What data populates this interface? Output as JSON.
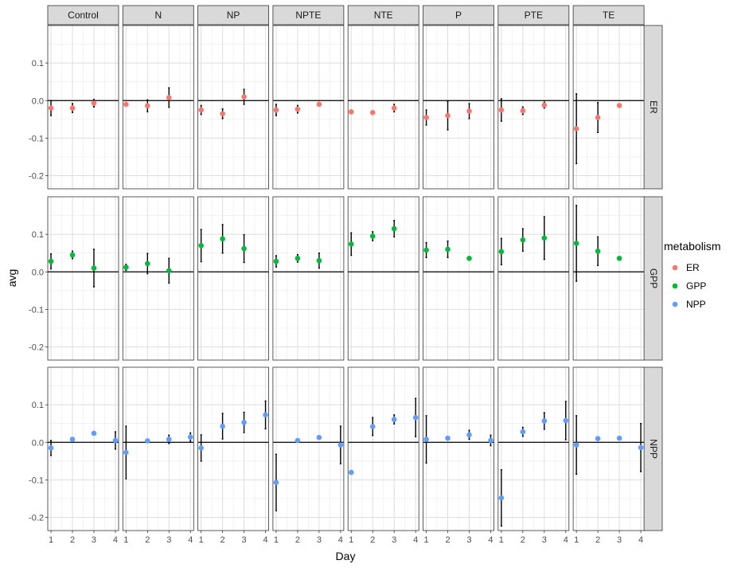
{
  "chart_data": {
    "type": "scatter",
    "facet_columns": [
      "Control",
      "N",
      "NP",
      "NPTE",
      "NTE",
      "P",
      "PTE",
      "TE"
    ],
    "facet_rows": [
      "ER",
      "GPP",
      "NPP"
    ],
    "xlabel": "Day",
    "ylabel": "avg",
    "x_ticks": [
      1,
      2,
      3,
      4
    ],
    "y_ticks": [
      -0.2,
      -0.1,
      0.0,
      0.1
    ],
    "y_tick_labels": [
      "-0.2",
      "-0.1",
      "0.0",
      "0.1"
    ],
    "xlim": [
      0.85,
      4.15
    ],
    "ylim": [
      -0.235,
      0.2
    ],
    "reference_line_y": 0,
    "grid": true,
    "legend": {
      "title": "metabolism",
      "position": "right",
      "entries": [
        {
          "name": "ER",
          "color": "#F8766D"
        },
        {
          "name": "GPP",
          "color": "#00BA38"
        },
        {
          "name": "NPP",
          "color": "#619CFF"
        }
      ]
    },
    "panels": [
      {
        "row": "ER",
        "col": "Control",
        "points": [
          {
            "x": 1,
            "y": -0.02,
            "lo": -0.04,
            "hi": 0.0
          },
          {
            "x": 2,
            "y": -0.02,
            "lo": -0.032,
            "hi": -0.008
          },
          {
            "x": 3,
            "y": -0.007,
            "lo": -0.017,
            "hi": 0.003
          }
        ]
      },
      {
        "row": "ER",
        "col": "N",
        "points": [
          {
            "x": 1,
            "y": -0.01,
            "lo": -0.013,
            "hi": -0.007
          },
          {
            "x": 2,
            "y": -0.014,
            "lo": -0.03,
            "hi": 0.002
          },
          {
            "x": 3,
            "y": 0.008,
            "lo": -0.018,
            "hi": 0.034
          }
        ]
      },
      {
        "row": "ER",
        "col": "NP",
        "points": [
          {
            "x": 1,
            "y": -0.025,
            "lo": -0.037,
            "hi": -0.013
          },
          {
            "x": 2,
            "y": -0.035,
            "lo": -0.048,
            "hi": -0.022
          },
          {
            "x": 3,
            "y": 0.01,
            "lo": -0.01,
            "hi": 0.03
          }
        ]
      },
      {
        "row": "ER",
        "col": "NPTE",
        "points": [
          {
            "x": 1,
            "y": -0.025,
            "lo": -0.04,
            "hi": -0.01
          },
          {
            "x": 2,
            "y": -0.023,
            "lo": -0.033,
            "hi": -0.013
          },
          {
            "x": 3,
            "y": -0.01,
            "lo": -0.015,
            "hi": -0.005
          }
        ]
      },
      {
        "row": "ER",
        "col": "NTE",
        "points": [
          {
            "x": 1,
            "y": -0.03,
            "lo": -0.035,
            "hi": -0.025
          },
          {
            "x": 2,
            "y": -0.032,
            "lo": -0.036,
            "hi": -0.028
          },
          {
            "x": 3,
            "y": -0.02,
            "lo": -0.03,
            "hi": -0.01
          }
        ]
      },
      {
        "row": "ER",
        "col": "P",
        "points": [
          {
            "x": 1,
            "y": -0.045,
            "lo": -0.065,
            "hi": -0.025
          },
          {
            "x": 2,
            "y": -0.04,
            "lo": -0.078,
            "hi": -0.002
          },
          {
            "x": 3,
            "y": -0.028,
            "lo": -0.048,
            "hi": -0.008
          }
        ]
      },
      {
        "row": "ER",
        "col": "PTE",
        "points": [
          {
            "x": 1,
            "y": -0.025,
            "lo": -0.055,
            "hi": 0.005
          },
          {
            "x": 2,
            "y": -0.027,
            "lo": -0.037,
            "hi": -0.017
          },
          {
            "x": 3,
            "y": -0.012,
            "lo": -0.02,
            "hi": -0.004
          }
        ]
      },
      {
        "row": "ER",
        "col": "TE",
        "points": [
          {
            "x": 1,
            "y": -0.075,
            "lo": -0.168,
            "hi": 0.018
          },
          {
            "x": 2,
            "y": -0.045,
            "lo": -0.085,
            "hi": -0.005
          },
          {
            "x": 3,
            "y": -0.013,
            "lo": -0.016,
            "hi": -0.01
          }
        ]
      },
      {
        "row": "GPP",
        "col": "Control",
        "points": [
          {
            "x": 1,
            "y": 0.028,
            "lo": 0.008,
            "hi": 0.048
          },
          {
            "x": 2,
            "y": 0.045,
            "lo": 0.035,
            "hi": 0.055
          },
          {
            "x": 3,
            "y": 0.01,
            "lo": -0.04,
            "hi": 0.06
          }
        ]
      },
      {
        "row": "GPP",
        "col": "N",
        "points": [
          {
            "x": 1,
            "y": 0.012,
            "lo": 0.004,
            "hi": 0.02
          },
          {
            "x": 2,
            "y": 0.022,
            "lo": -0.005,
            "hi": 0.049
          },
          {
            "x": 3,
            "y": 0.003,
            "lo": -0.03,
            "hi": 0.036
          }
        ]
      },
      {
        "row": "GPP",
        "col": "NP",
        "points": [
          {
            "x": 1,
            "y": 0.07,
            "lo": 0.027,
            "hi": 0.113
          },
          {
            "x": 2,
            "y": 0.088,
            "lo": 0.05,
            "hi": 0.126
          },
          {
            "x": 3,
            "y": 0.062,
            "lo": 0.025,
            "hi": 0.099
          }
        ]
      },
      {
        "row": "GPP",
        "col": "NPTE",
        "points": [
          {
            "x": 1,
            "y": 0.028,
            "lo": 0.013,
            "hi": 0.043
          },
          {
            "x": 2,
            "y": 0.036,
            "lo": 0.026,
            "hi": 0.046
          },
          {
            "x": 3,
            "y": 0.03,
            "lo": 0.01,
            "hi": 0.05
          }
        ]
      },
      {
        "row": "GPP",
        "col": "NTE",
        "points": [
          {
            "x": 1,
            "y": 0.074,
            "lo": 0.044,
            "hi": 0.104
          },
          {
            "x": 2,
            "y": 0.095,
            "lo": 0.083,
            "hi": 0.107
          },
          {
            "x": 3,
            "y": 0.115,
            "lo": 0.093,
            "hi": 0.137
          }
        ]
      },
      {
        "row": "GPP",
        "col": "P",
        "points": [
          {
            "x": 1,
            "y": 0.058,
            "lo": 0.038,
            "hi": 0.078
          },
          {
            "x": 2,
            "y": 0.06,
            "lo": 0.038,
            "hi": 0.082
          },
          {
            "x": 3,
            "y": 0.036,
            "lo": 0.033,
            "hi": 0.039
          }
        ]
      },
      {
        "row": "GPP",
        "col": "PTE",
        "points": [
          {
            "x": 1,
            "y": 0.054,
            "lo": 0.019,
            "hi": 0.089
          },
          {
            "x": 2,
            "y": 0.085,
            "lo": 0.055,
            "hi": 0.115
          },
          {
            "x": 3,
            "y": 0.09,
            "lo": 0.033,
            "hi": 0.147
          }
        ]
      },
      {
        "row": "GPP",
        "col": "TE",
        "points": [
          {
            "x": 1,
            "y": 0.076,
            "lo": -0.025,
            "hi": 0.177
          },
          {
            "x": 2,
            "y": 0.055,
            "lo": 0.017,
            "hi": 0.093
          },
          {
            "x": 3,
            "y": 0.036,
            "lo": 0.033,
            "hi": 0.039
          }
        ]
      },
      {
        "row": "NPP",
        "col": "Control",
        "points": [
          {
            "x": 1,
            "y": -0.015,
            "lo": -0.035,
            "hi": 0.005
          },
          {
            "x": 2,
            "y": 0.008,
            "lo": 0.006,
            "hi": 0.01
          },
          {
            "x": 3,
            "y": 0.024,
            "lo": 0.021,
            "hi": 0.027
          },
          {
            "x": 4,
            "y": 0.005,
            "lo": -0.018,
            "hi": 0.028
          }
        ]
      },
      {
        "row": "NPP",
        "col": "N",
        "points": [
          {
            "x": 1,
            "y": -0.027,
            "lo": -0.097,
            "hi": 0.043
          },
          {
            "x": 2,
            "y": 0.004,
            "lo": 0.002,
            "hi": 0.006
          },
          {
            "x": 3,
            "y": 0.008,
            "lo": -0.003,
            "hi": 0.019
          },
          {
            "x": 4,
            "y": 0.014,
            "lo": 0.003,
            "hi": 0.025
          }
        ]
      },
      {
        "row": "NPP",
        "col": "NP",
        "points": [
          {
            "x": 1,
            "y": -0.015,
            "lo": -0.05,
            "hi": 0.02
          },
          {
            "x": 2,
            "y": 0.043,
            "lo": 0.009,
            "hi": 0.077
          },
          {
            "x": 3,
            "y": 0.053,
            "lo": 0.026,
            "hi": 0.08
          },
          {
            "x": 4,
            "y": 0.073,
            "lo": 0.036,
            "hi": 0.11
          }
        ]
      },
      {
        "row": "NPP",
        "col": "NPTE",
        "points": [
          {
            "x": 1,
            "y": -0.107,
            "lo": -0.182,
            "hi": -0.032
          },
          {
            "x": 2,
            "y": 0.005,
            "lo": 0.003,
            "hi": 0.007
          },
          {
            "x": 3,
            "y": 0.013,
            "lo": 0.011,
            "hi": 0.015
          },
          {
            "x": 4,
            "y": -0.007,
            "lo": -0.057,
            "hi": 0.043
          }
        ]
      },
      {
        "row": "NPP",
        "col": "NTE",
        "points": [
          {
            "x": 1,
            "y": -0.08,
            "lo": -0.083,
            "hi": -0.077
          },
          {
            "x": 2,
            "y": 0.042,
            "lo": 0.018,
            "hi": 0.066
          },
          {
            "x": 3,
            "y": 0.061,
            "lo": 0.049,
            "hi": 0.073
          },
          {
            "x": 4,
            "y": 0.066,
            "lo": 0.015,
            "hi": 0.117
          }
        ]
      },
      {
        "row": "NPP",
        "col": "P",
        "points": [
          {
            "x": 1,
            "y": 0.008,
            "lo": -0.055,
            "hi": 0.071
          },
          {
            "x": 2,
            "y": 0.011,
            "lo": 0.008,
            "hi": 0.014
          },
          {
            "x": 3,
            "y": 0.02,
            "lo": 0.008,
            "hi": 0.032
          },
          {
            "x": 4,
            "y": 0.005,
            "lo": -0.009,
            "hi": 0.019
          }
        ]
      },
      {
        "row": "NPP",
        "col": "PTE",
        "points": [
          {
            "x": 1,
            "y": -0.148,
            "lo": -0.223,
            "hi": -0.073
          },
          {
            "x": 2,
            "y": 0.028,
            "lo": 0.016,
            "hi": 0.04
          },
          {
            "x": 3,
            "y": 0.057,
            "lo": 0.035,
            "hi": 0.079
          },
          {
            "x": 4,
            "y": 0.058,
            "lo": 0.007,
            "hi": 0.109
          }
        ]
      },
      {
        "row": "NPP",
        "col": "TE",
        "points": [
          {
            "x": 1,
            "y": -0.007,
            "lo": -0.085,
            "hi": 0.071
          },
          {
            "x": 2,
            "y": 0.01,
            "lo": 0.007,
            "hi": 0.013
          },
          {
            "x": 3,
            "y": 0.011,
            "lo": 0.008,
            "hi": 0.014
          },
          {
            "x": 4,
            "y": -0.014,
            "lo": -0.078,
            "hi": 0.05
          }
        ]
      }
    ]
  }
}
